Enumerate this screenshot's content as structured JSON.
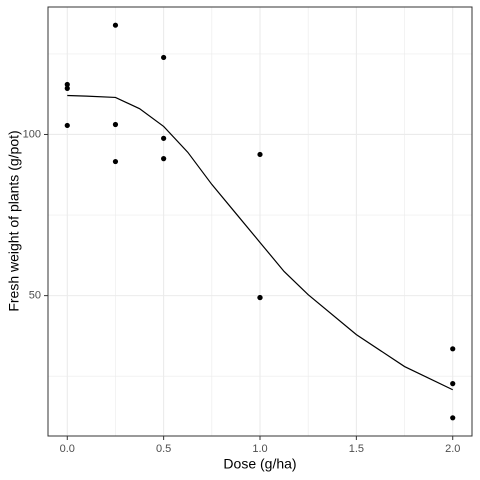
{
  "chart_data": {
    "type": "scatter",
    "xlabel": "Dose (g/ha)",
    "ylabel": "Fresh weight of plants (g/pot)",
    "xlim": [
      -0.1,
      2.1
    ],
    "ylim": [
      6.45,
      139.55
    ],
    "xticks": [
      {
        "value": 0,
        "label": "0.0"
      },
      0.5,
      {
        "value": 1,
        "label": "1.0"
      },
      1.5,
      {
        "value": 2,
        "label": "2.0"
      }
    ],
    "yticks": [
      50,
      100
    ],
    "xminor": [
      0.25,
      0.75,
      1.25,
      1.75
    ],
    "yminor": [
      25,
      75,
      125
    ],
    "grid": true,
    "series": [
      {
        "type": "scatter",
        "color": "#000000",
        "x": [
          0,
          0,
          0,
          0.25,
          0.25,
          0.25,
          0.5,
          0.5,
          0.5,
          1,
          1,
          1,
          2,
          2,
          2
        ],
        "values": [
          115.5,
          114.3,
          102.8,
          133.9,
          103.1,
          91.6,
          123.9,
          98.8,
          92.5,
          93.8,
          49.4,
          49.4,
          33.5,
          22.7,
          12.1
        ]
      },
      {
        "type": "line",
        "color": "#000000",
        "x": [
          0,
          0.1,
          0.25,
          0.375,
          0.5,
          0.625,
          0.75,
          0.875,
          1,
          1.125,
          1.25,
          1.5,
          1.75,
          2
        ],
        "values": [
          112.1,
          111.9,
          111.5,
          108,
          102.5,
          94.5,
          84.5,
          75.5,
          66.5,
          57.5,
          50.3,
          37.9,
          28,
          20.8
        ]
      }
    ]
  }
}
